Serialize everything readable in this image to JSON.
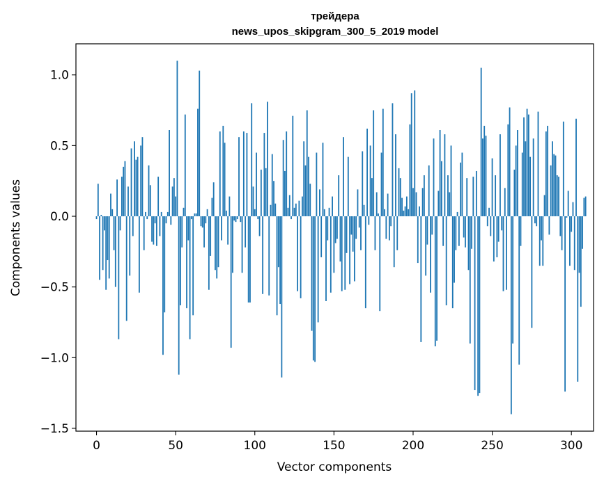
{
  "chart_data": {
    "type": "bar",
    "title": [
      "трейдера",
      "news_upos_skipgram_300_5_2019 model"
    ],
    "xlabel": "Vector components",
    "ylabel": "Components values",
    "xlim": [
      -13,
      314
    ],
    "ylim": [
      -1.52,
      1.22
    ],
    "xticks": [
      0,
      50,
      100,
      150,
      200,
      250,
      300
    ],
    "yticks": [
      -1.5,
      -1.0,
      -0.5,
      0.0,
      0.5,
      1.0
    ],
    "ytick_labels": [
      "−1.5",
      "−1.0",
      "−0.5",
      "0.0",
      "0.5",
      "1.0"
    ],
    "grid": false,
    "bar_color": "#1f77b4",
    "values": [
      -0.02,
      0.23,
      -0.45,
      0.01,
      -0.38,
      -0.1,
      -0.52,
      -0.31,
      -0.44,
      0.16,
      0.05,
      -0.24,
      -0.5,
      0.26,
      -0.87,
      -0.1,
      0.28,
      0.35,
      0.39,
      -0.74,
      0.21,
      -0.42,
      0.48,
      -0.14,
      0.53,
      0.4,
      0.42,
      -0.54,
      0.5,
      0.56,
      -0.24,
      0.03,
      -0.02,
      0.36,
      0.22,
      -0.18,
      -0.2,
      -0.05,
      -0.21,
      0.28,
      -0.14,
      0.03,
      -0.98,
      -0.68,
      -0.05,
      0.03,
      0.61,
      -0.06,
      0.21,
      0.27,
      0.14,
      1.1,
      -1.12,
      -0.63,
      -0.22,
      0.06,
      0.72,
      -0.65,
      -0.17,
      -0.87,
      -0.02,
      -0.7,
      0.02,
      0.02,
      0.76,
      1.03,
      -0.07,
      -0.08,
      -0.22,
      -0.05,
      0.05,
      -0.52,
      -0.28,
      0.13,
      0.24,
      -0.38,
      -0.44,
      -0.36,
      0.6,
      -0.17,
      0.64,
      0.52,
      0.04,
      -0.2,
      0.14,
      -0.93,
      -0.4,
      -0.03,
      -0.04,
      -0.02,
      0.56,
      -0.04,
      -0.4,
      0.6,
      -0.22,
      0.59,
      -0.61,
      -0.61,
      0.8,
      0.21,
      0.05,
      0.45,
      -0.02,
      -0.14,
      0.33,
      -0.55,
      0.59,
      0.34,
      0.81,
      -0.56,
      0.08,
      0.44,
      0.25,
      0.09,
      -0.7,
      -0.36,
      -0.62,
      -1.14,
      0.54,
      0.32,
      0.6,
      0.06,
      0.15,
      -0.02,
      0.71,
      0.06,
      0.09,
      -0.53,
      0.11,
      -0.58,
      0.14,
      0.53,
      0.36,
      0.75,
      0.42,
      0.23,
      -0.81,
      -1.02,
      -1.03,
      0.45,
      -0.75,
      0.19,
      -0.29,
      0.52,
      0.05,
      -0.6,
      -0.17,
      0.06,
      -0.54,
      0.14,
      -0.4,
      -0.19,
      -0.16,
      0.29,
      -0.32,
      -0.53,
      0.56,
      -0.52,
      -0.26,
      0.42,
      -0.48,
      -0.13,
      -0.25,
      -0.46,
      -0.16,
      0.19,
      -0.08,
      -0.24,
      0.46,
      0.08,
      -0.65,
      0.62,
      -0.06,
      0.5,
      0.27,
      0.75,
      -0.24,
      0.17,
      0.02,
      -0.67,
      0.45,
      0.76,
      0.05,
      -0.16,
      0.16,
      -0.17,
      -0.07,
      0.8,
      -0.36,
      0.58,
      -0.24,
      0.34,
      0.27,
      0.13,
      0.04,
      0.07,
      0.14,
      0.05,
      0.65,
      0.87,
      0.2,
      0.89,
      0.17,
      -0.33,
      0.07,
      -0.89,
      0.2,
      0.29,
      -0.42,
      -0.2,
      0.36,
      -0.54,
      -0.13,
      0.55,
      -0.92,
      -0.88,
      0.18,
      0.61,
      0.39,
      -0.21,
      0.58,
      -0.63,
      0.29,
      0.17,
      0.5,
      -0.65,
      -0.47,
      -0.24,
      0.03,
      -0.21,
      0.38,
      0.45,
      -0.15,
      -0.22,
      0.27,
      -0.38,
      -0.9,
      -0.23,
      0.28,
      -1.23,
      0.32,
      -1.27,
      -1.25,
      1.05,
      0.55,
      0.64,
      0.57,
      -0.07,
      0.06,
      -0.14,
      0.41,
      -0.32,
      0.29,
      -0.29,
      -0.18,
      0.58,
      -0.1,
      -0.53,
      0.2,
      -0.52,
      0.65,
      0.77,
      -1.4,
      -0.9,
      0.33,
      0.5,
      0.61,
      -1.05,
      -0.21,
      0.45,
      0.7,
      0.53,
      0.76,
      0.72,
      0.42,
      -0.79,
      0.55,
      -0.05,
      -0.07,
      0.74,
      -0.35,
      -0.17,
      -0.35,
      0.15,
      0.6,
      0.64,
      -0.13,
      0.36,
      0.53,
      0.44,
      0.43,
      0.29,
      0.28,
      -0.14,
      -0.24,
      0.67,
      -1.24,
      -0.01,
      0.18,
      -0.35,
      -0.11,
      0.1,
      -0.38,
      0.69,
      -1.17,
      -0.4,
      -0.64,
      -0.23,
      0.13,
      0.14
    ]
  }
}
